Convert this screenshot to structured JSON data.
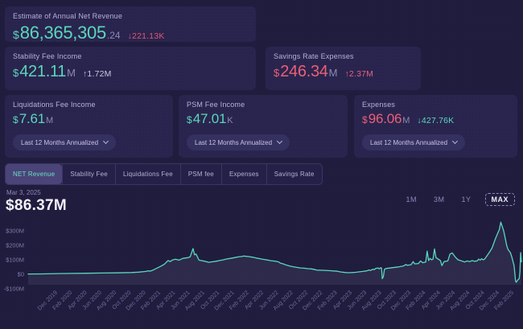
{
  "cards": {
    "annual": {
      "label": "Estimate of Annual Net Revenue",
      "prefix": "$",
      "value": "86,365,305",
      "decimals": ".24",
      "delta_arrow": "↓",
      "delta": "221.13K"
    },
    "stability": {
      "label": "Stability Fee Income",
      "prefix": "$",
      "value": "421.11",
      "suffix": "M",
      "delta_arrow": "↑",
      "delta": "1.72M"
    },
    "savings": {
      "label": "Savings Rate Expenses",
      "prefix": "$",
      "value": "246.34",
      "suffix": "M",
      "delta_arrow": "↑",
      "delta": "2.37M"
    },
    "liquidations": {
      "label": "Liquidations Fee Income",
      "prefix": "$",
      "value": "7.61",
      "suffix": "M",
      "period": "Last 12 Months Annualized"
    },
    "psm": {
      "label": "PSM Fee Income",
      "prefix": "$",
      "value": "47.01",
      "suffix": "K",
      "period": "Last 12 Months Annualized"
    },
    "expenses": {
      "label": "Expenses",
      "prefix": "$",
      "value": "96.06",
      "suffix": "M",
      "delta_arrow": "↓",
      "delta": "427.76K",
      "period": "Last 12 Months Annualized"
    }
  },
  "tabs": [
    {
      "label": "NET Revenue",
      "active": true
    },
    {
      "label": "Stability Fee",
      "active": false
    },
    {
      "label": "Liquidations Fee",
      "active": false
    },
    {
      "label": "PSM fee",
      "active": false
    },
    {
      "label": "Expenses",
      "active": false
    },
    {
      "label": "Savings Rate",
      "active": false
    }
  ],
  "chart_header": {
    "date": "Mar 3, 2025",
    "value": "$86.37M"
  },
  "ranges": [
    {
      "label": "1M",
      "active": false
    },
    {
      "label": "3M",
      "active": false
    },
    {
      "label": "1Y",
      "active": false
    },
    {
      "label": "MAX",
      "active": true
    }
  ],
  "colors": {
    "line": "#5ad8bb",
    "positive": "#5bd7ba",
    "negative": "#ed5f76"
  },
  "chart_data": {
    "type": "line",
    "title": "NET Revenue",
    "unit": "USD, millions, last 12 months annualized",
    "x_origin_month": "2019-08",
    "month_span": 67,
    "ylim": [
      -100,
      380
    ],
    "ytick_values": [
      300,
      200,
      100,
      0,
      -100
    ],
    "ytick_labels": [
      "$300M",
      "$200M",
      "$100M",
      "$0",
      "-$100M"
    ],
    "xtick_offsets": [
      4,
      6,
      8,
      10,
      12,
      14,
      16,
      18,
      20,
      22,
      24,
      26,
      28,
      30,
      32,
      34,
      36,
      38,
      40,
      42,
      44,
      46,
      48,
      50,
      52,
      54,
      56,
      58,
      60,
      62,
      64,
      66
    ],
    "xtick_labels": [
      "Dec 2019",
      "Feb 2020",
      "Apr 2020",
      "Jun 2020",
      "Aug 2020",
      "Oct 2020",
      "Dec 2020",
      "Feb 2021",
      "Apr 2021",
      "Jun 2021",
      "Aug 2021",
      "Oct 2021",
      "Dec 2021",
      "Feb 2022",
      "Apr 2022",
      "Jun 2022",
      "Aug 2022",
      "Oct 2022",
      "Dec 2022",
      "Feb 2023",
      "Apr 2023",
      "Jun 2023",
      "Aug 2023",
      "Oct 2023",
      "Dec 2023",
      "Feb 2024",
      "Apr 2024",
      "Jun 2024",
      "Aug 2024",
      "Oct 2024",
      "Dec 2024",
      "Feb 2025"
    ],
    "points": [
      [
        0,
        2
      ],
      [
        2,
        3
      ],
      [
        4,
        5
      ],
      [
        6,
        6
      ],
      [
        8,
        7
      ],
      [
        10,
        9
      ],
      [
        12,
        10
      ],
      [
        14,
        12
      ],
      [
        15,
        15
      ],
      [
        16,
        20
      ],
      [
        16.3,
        24
      ],
      [
        16.6,
        22
      ],
      [
        17,
        30
      ],
      [
        18,
        55
      ],
      [
        18.5,
        70
      ],
      [
        19,
        95
      ],
      [
        19.3,
        88
      ],
      [
        19.6,
        99
      ],
      [
        20,
        104
      ],
      [
        20.5,
        98
      ],
      [
        21,
        110
      ],
      [
        21.7,
        115
      ],
      [
        22,
        120
      ],
      [
        22.4,
        178
      ],
      [
        22.6,
        135
      ],
      [
        22.8,
        140
      ],
      [
        23,
        120
      ],
      [
        23.2,
        98
      ],
      [
        23.5,
        95
      ],
      [
        24,
        90
      ],
      [
        24.5,
        83
      ],
      [
        25,
        86
      ],
      [
        25.5,
        90
      ],
      [
        26,
        95
      ],
      [
        26.5,
        100
      ],
      [
        27,
        106
      ],
      [
        27.5,
        110
      ],
      [
        28,
        115
      ],
      [
        28.5,
        120
      ],
      [
        29,
        123
      ],
      [
        29.3,
        126
      ],
      [
        30,
        122
      ],
      [
        30.5,
        118
      ],
      [
        31,
        112
      ],
      [
        31.5,
        108
      ],
      [
        32,
        103
      ],
      [
        32.5,
        99
      ],
      [
        33,
        94
      ],
      [
        33.5,
        91
      ],
      [
        34,
        86
      ],
      [
        34.3,
        76
      ],
      [
        34.6,
        73
      ],
      [
        35,
        65
      ],
      [
        35.5,
        58
      ],
      [
        36,
        52
      ],
      [
        36.5,
        48
      ],
      [
        37,
        44
      ],
      [
        37.5,
        42
      ],
      [
        38,
        39
      ],
      [
        38.5,
        37
      ],
      [
        39,
        32
      ],
      [
        39.2,
        29
      ],
      [
        40,
        28
      ],
      [
        41,
        25
      ],
      [
        42,
        21
      ],
      [
        42.5,
        16
      ],
      [
        43,
        13
      ],
      [
        43.5,
        11
      ],
      [
        44,
        12
      ],
      [
        44.5,
        14
      ],
      [
        45,
        17
      ],
      [
        45.5,
        20
      ],
      [
        46,
        24
      ],
      [
        46.3,
        30
      ],
      [
        46.5,
        26
      ],
      [
        46.8,
        35
      ],
      [
        47,
        32
      ],
      [
        47.2,
        40
      ],
      [
        47.5,
        44
      ],
      [
        47.7,
        38
      ],
      [
        47.9,
        46
      ],
      [
        48,
        42
      ],
      [
        48.1,
        -30
      ],
      [
        48.25,
        -15
      ],
      [
        48.4,
        35
      ],
      [
        48.6,
        40
      ],
      [
        49,
        43
      ],
      [
        49.5,
        46
      ],
      [
        50,
        49
      ],
      [
        50.5,
        53
      ],
      [
        51,
        58
      ],
      [
        51.3,
        68
      ],
      [
        51.5,
        62
      ],
      [
        52,
        66
      ],
      [
        52.3,
        88
      ],
      [
        52.5,
        72
      ],
      [
        53,
        74
      ],
      [
        53.3,
        92
      ],
      [
        53.6,
        80
      ],
      [
        54,
        85
      ],
      [
        54.2,
        160
      ],
      [
        54.4,
        95
      ],
      [
        54.6,
        110
      ],
      [
        54.8,
        100
      ],
      [
        55,
        105
      ],
      [
        55.2,
        175
      ],
      [
        55.4,
        115
      ],
      [
        56,
        95
      ],
      [
        56.2,
        60
      ],
      [
        56.5,
        88
      ],
      [
        57,
        92
      ],
      [
        57.3,
        140
      ],
      [
        57.6,
        148
      ],
      [
        58,
        120
      ],
      [
        58.4,
        100
      ],
      [
        58.7,
        95
      ],
      [
        59,
        90
      ],
      [
        59.3,
        85
      ],
      [
        59.6,
        92
      ],
      [
        60,
        88
      ],
      [
        60.3,
        95
      ],
      [
        60.6,
        90
      ],
      [
        61,
        93
      ],
      [
        61.2,
        105
      ],
      [
        61.4,
        98
      ],
      [
        61.6,
        108
      ],
      [
        61.8,
        100
      ],
      [
        62,
        105
      ],
      [
        62.5,
        140
      ],
      [
        63,
        180
      ],
      [
        63.5,
        250
      ],
      [
        64,
        310
      ],
      [
        64.2,
        360
      ],
      [
        64.4,
        330
      ],
      [
        64.6,
        300
      ],
      [
        64.8,
        250
      ],
      [
        65,
        200
      ],
      [
        65.2,
        170
      ],
      [
        65.5,
        150
      ],
      [
        65.7,
        120
      ],
      [
        66,
        60
      ],
      [
        66.1,
        10
      ],
      [
        66.2,
        -45
      ],
      [
        66.3,
        -55
      ],
      [
        66.5,
        -40
      ],
      [
        66.7,
        -30
      ],
      [
        66.8,
        20
      ],
      [
        66.9,
        150
      ],
      [
        67,
        86.37
      ]
    ],
    "current_point": {
      "date": "Mar 3, 2025",
      "value_musd": 86.37
    },
    "legend": "none",
    "grid": "off"
  }
}
